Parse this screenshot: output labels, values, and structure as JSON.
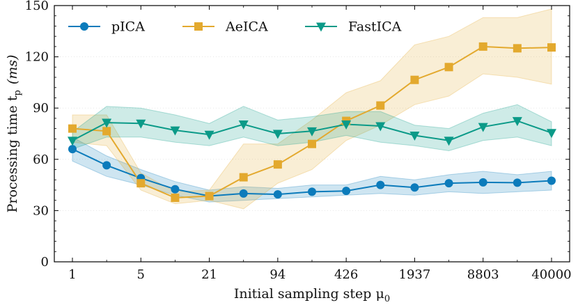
{
  "chart_data": {
    "type": "line",
    "title": "",
    "xlabel": "Initial sampling step μ",
    "xlabel_sub": "0",
    "ylabel_main": "Processing time t",
    "ylabel_sub": "p",
    "ylabel_unit": "(ms)",
    "x": [
      1,
      2,
      5,
      10,
      21,
      44,
      94,
      200,
      426,
      906,
      1937,
      4128,
      8803,
      18766,
      40000
    ],
    "xticks": [
      "1",
      "5",
      "21",
      "94",
      "426",
      "1937",
      "8803",
      "40000"
    ],
    "xtick_positions": [
      0,
      2,
      4,
      6,
      8,
      10,
      12,
      14
    ],
    "ylim": [
      0,
      150
    ],
    "yticks": [
      "0",
      "30",
      "60",
      "90",
      "120",
      "150"
    ],
    "ytick_values": [
      0,
      30,
      60,
      90,
      120,
      150
    ],
    "legend_position": "top-left",
    "series": [
      {
        "name": "pICA",
        "color": "#0C7BBB",
        "marker": "circle",
        "values": [
          66,
          56.5,
          49,
          42.5,
          38.5,
          40,
          39.5,
          41,
          41.5,
          45,
          43.5,
          46,
          46.5,
          46.3,
          47.5
        ],
        "lower": [
          59,
          50,
          45,
          39,
          35,
          36,
          37,
          38,
          39,
          40,
          39,
          41,
          40,
          41,
          42
        ],
        "upper": [
          73,
          62,
          54,
          47,
          42,
          44,
          43,
          45,
          45,
          50,
          48,
          51,
          53,
          51,
          53
        ]
      },
      {
        "name": "AeICA",
        "color": "#E3A92E",
        "marker": "square",
        "values": [
          78,
          76.5,
          46,
          37.5,
          38.5,
          49.5,
          57,
          69,
          82.5,
          91.5,
          106.5,
          114,
          126,
          125,
          125.5
        ],
        "lower": [
          70,
          68,
          42,
          34,
          36,
          31,
          46,
          54,
          71,
          80,
          92,
          97,
          110,
          108,
          104
        ],
        "upper": [
          86,
          86,
          52,
          41,
          42,
          69,
          69,
          83,
          99,
          106,
          127,
          132,
          143,
          143,
          148
        ]
      },
      {
        "name": "FastICA",
        "color": "#0B9A88",
        "marker": "triangle-down",
        "values": [
          71,
          81.5,
          81,
          77,
          74.5,
          80.5,
          75,
          76.5,
          80.5,
          79.5,
          74,
          71,
          79,
          82.5,
          75.5
        ],
        "lower": [
          66,
          73,
          73,
          70,
          68,
          73,
          68,
          70,
          74,
          70,
          68,
          65,
          71,
          73,
          68
        ],
        "upper": [
          76,
          91,
          90,
          86,
          81,
          91,
          83,
          85,
          88,
          88,
          80,
          78,
          87,
          92,
          82
        ]
      }
    ]
  }
}
